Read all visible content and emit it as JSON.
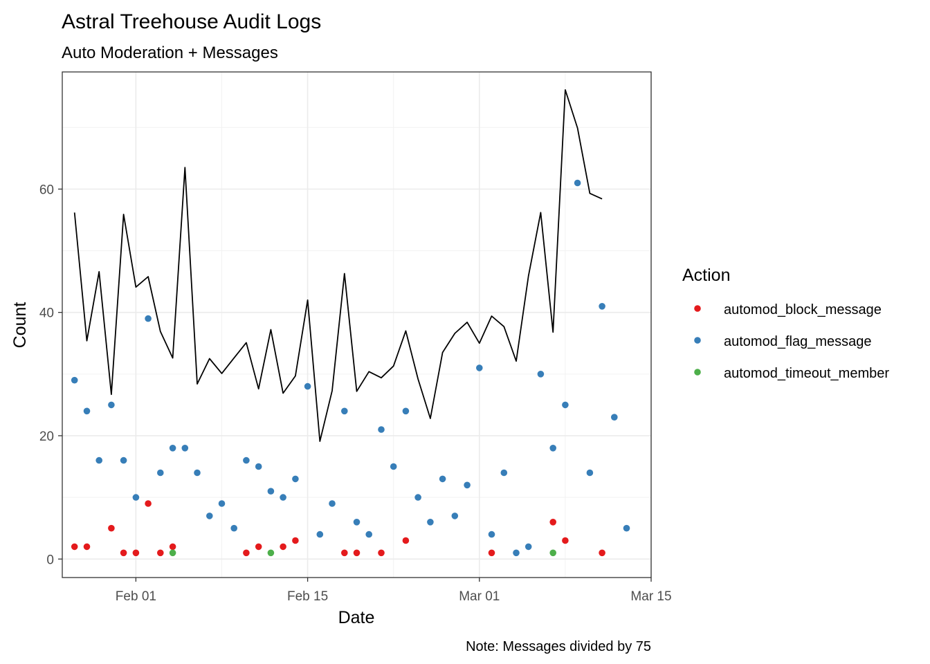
{
  "chart_data": {
    "type": "scatter",
    "title": "Astral Treehouse Audit Logs",
    "subtitle": "Auto Moderation + Messages",
    "xlabel": "Date",
    "ylabel": "Count",
    "caption": "Note: Messages divided by 75",
    "x_range": [
      "2025-01-26",
      "2025-03-15"
    ],
    "ylim": [
      -3,
      79
    ],
    "x_ticks": [
      {
        "date": "2025-02-01",
        "label": "Feb 01"
      },
      {
        "date": "2025-02-15",
        "label": "Feb 15"
      },
      {
        "date": "2025-03-01",
        "label": "Mar 01"
      },
      {
        "date": "2025-03-15",
        "label": "Mar 15"
      }
    ],
    "y_ticks": [
      0,
      20,
      40,
      60
    ],
    "y_minor": [
      10,
      30,
      50,
      70
    ],
    "grid": true,
    "legend": {
      "title": "Action",
      "position": "right"
    },
    "series": [
      {
        "name": "automod_block_message",
        "kind": "points",
        "color": "#E41A1C",
        "points": [
          [
            "2025-01-27",
            2
          ],
          [
            "2025-01-28",
            2
          ],
          [
            "2025-01-30",
            5
          ],
          [
            "2025-01-31",
            1
          ],
          [
            "2025-02-01",
            1
          ],
          [
            "2025-02-02",
            9
          ],
          [
            "2025-02-03",
            1
          ],
          [
            "2025-02-04",
            2
          ],
          [
            "2025-02-10",
            1
          ],
          [
            "2025-02-11",
            2
          ],
          [
            "2025-02-13",
            2
          ],
          [
            "2025-02-14",
            3
          ],
          [
            "2025-02-18",
            1
          ],
          [
            "2025-02-19",
            1
          ],
          [
            "2025-02-21",
            1
          ],
          [
            "2025-02-23",
            3
          ],
          [
            "2025-03-02",
            1
          ],
          [
            "2025-03-07",
            6
          ],
          [
            "2025-03-08",
            3
          ],
          [
            "2025-03-11",
            1
          ]
        ]
      },
      {
        "name": "automod_flag_message",
        "kind": "points",
        "color": "#377EB8",
        "points": [
          [
            "2025-01-27",
            29
          ],
          [
            "2025-01-28",
            24
          ],
          [
            "2025-01-29",
            16
          ],
          [
            "2025-01-30",
            25
          ],
          [
            "2025-01-31",
            16
          ],
          [
            "2025-02-01",
            10
          ],
          [
            "2025-02-02",
            39
          ],
          [
            "2025-02-03",
            14
          ],
          [
            "2025-02-04",
            18
          ],
          [
            "2025-02-05",
            18
          ],
          [
            "2025-02-06",
            14
          ],
          [
            "2025-02-07",
            7
          ],
          [
            "2025-02-08",
            9
          ],
          [
            "2025-02-09",
            5
          ],
          [
            "2025-02-10",
            16
          ],
          [
            "2025-02-11",
            15
          ],
          [
            "2025-02-12",
            11
          ],
          [
            "2025-02-13",
            10
          ],
          [
            "2025-02-14",
            13
          ],
          [
            "2025-02-15",
            28
          ],
          [
            "2025-02-16",
            4
          ],
          [
            "2025-02-17",
            9
          ],
          [
            "2025-02-18",
            24
          ],
          [
            "2025-02-19",
            6
          ],
          [
            "2025-02-20",
            4
          ],
          [
            "2025-02-21",
            21
          ],
          [
            "2025-02-22",
            15
          ],
          [
            "2025-02-23",
            24
          ],
          [
            "2025-02-24",
            10
          ],
          [
            "2025-02-25",
            6
          ],
          [
            "2025-02-26",
            13
          ],
          [
            "2025-02-27",
            7
          ],
          [
            "2025-02-28",
            12
          ],
          [
            "2025-03-01",
            31
          ],
          [
            "2025-03-02",
            4
          ],
          [
            "2025-03-03",
            14
          ],
          [
            "2025-03-04",
            1
          ],
          [
            "2025-03-05",
            2
          ],
          [
            "2025-03-06",
            30
          ],
          [
            "2025-03-07",
            18
          ],
          [
            "2025-03-08",
            25
          ],
          [
            "2025-03-09",
            61
          ],
          [
            "2025-03-10",
            14
          ],
          [
            "2025-03-11",
            41
          ],
          [
            "2025-03-12",
            23
          ],
          [
            "2025-03-13",
            5
          ]
        ]
      },
      {
        "name": "automod_timeout_member",
        "kind": "points",
        "color": "#4DAF4A",
        "points": [
          [
            "2025-02-04",
            1
          ],
          [
            "2025-02-12",
            1
          ],
          [
            "2025-03-07",
            1
          ]
        ]
      },
      {
        "kind": "line",
        "color": "#000000",
        "points": [
          [
            "2025-01-27",
            56.2
          ],
          [
            "2025-01-28",
            35.4
          ],
          [
            "2025-01-29",
            46.6
          ],
          [
            "2025-01-30",
            26.7
          ],
          [
            "2025-01-31",
            55.9
          ],
          [
            "2025-02-01",
            44.1
          ],
          [
            "2025-02-02",
            45.8
          ],
          [
            "2025-02-03",
            36.9
          ],
          [
            "2025-02-04",
            32.6
          ],
          [
            "2025-02-05",
            63.5
          ],
          [
            "2025-02-06",
            28.4
          ],
          [
            "2025-02-07",
            32.5
          ],
          [
            "2025-02-08",
            30.1
          ],
          [
            "2025-02-09",
            32.6
          ],
          [
            "2025-02-10",
            35.1
          ],
          [
            "2025-02-11",
            27.6
          ],
          [
            "2025-02-12",
            37.2
          ],
          [
            "2025-02-13",
            26.9
          ],
          [
            "2025-02-14",
            29.7
          ],
          [
            "2025-02-15",
            42.0
          ],
          [
            "2025-02-16",
            19.1
          ],
          [
            "2025-02-17",
            27.3
          ],
          [
            "2025-02-18",
            46.3
          ],
          [
            "2025-02-19",
            27.2
          ],
          [
            "2025-02-20",
            30.4
          ],
          [
            "2025-02-21",
            29.4
          ],
          [
            "2025-02-22",
            31.3
          ],
          [
            "2025-02-23",
            37.0
          ],
          [
            "2025-02-24",
            29.2
          ],
          [
            "2025-02-25",
            22.8
          ],
          [
            "2025-02-26",
            33.5
          ],
          [
            "2025-02-27",
            36.6
          ],
          [
            "2025-02-28",
            38.4
          ],
          [
            "2025-03-01",
            35.0
          ],
          [
            "2025-03-02",
            39.4
          ],
          [
            "2025-03-03",
            37.7
          ],
          [
            "2025-03-04",
            32.1
          ],
          [
            "2025-03-05",
            45.9
          ],
          [
            "2025-03-06",
            56.2
          ],
          [
            "2025-03-07",
            36.8
          ],
          [
            "2025-03-08",
            76.1
          ],
          [
            "2025-03-09",
            69.9
          ],
          [
            "2025-03-10",
            59.3
          ],
          [
            "2025-03-11",
            58.4
          ]
        ]
      }
    ]
  }
}
